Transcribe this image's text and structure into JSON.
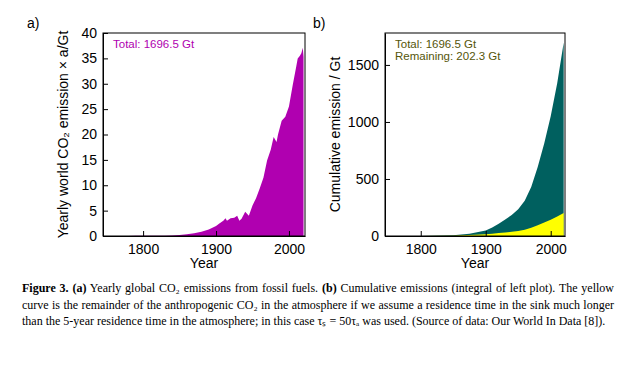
{
  "chart_data": [
    {
      "type": "area",
      "panel_label": "a)",
      "x_label": "Year",
      "y_label": "Yearly world CO₂ emission × a/Gt",
      "annotations": [
        {
          "text": "Total: 1696.5 Gt",
          "color": "#b000b0"
        }
      ],
      "x": [
        1750,
        1760,
        1770,
        1780,
        1790,
        1800,
        1810,
        1820,
        1830,
        1840,
        1850,
        1860,
        1870,
        1880,
        1890,
        1900,
        1905,
        1910,
        1913,
        1915,
        1920,
        1925,
        1929,
        1932,
        1935,
        1940,
        1945,
        1950,
        1955,
        1960,
        1965,
        1970,
        1975,
        1979,
        1983,
        1985,
        1990,
        1995,
        2000,
        2005,
        2010,
        2012,
        2015,
        2017,
        2019,
        2020
      ],
      "series": [
        {
          "color": "#b000b0",
          "values": [
            0.01,
            0.01,
            0.02,
            0.02,
            0.03,
            0.03,
            0.04,
            0.05,
            0.07,
            0.1,
            0.2,
            0.36,
            0.55,
            0.85,
            1.3,
            1.95,
            2.5,
            3.0,
            3.5,
            3.0,
            3.5,
            3.6,
            4.0,
            3.0,
            3.4,
            4.8,
            4.0,
            6.0,
            7.5,
            9.4,
            11.5,
            14.9,
            17.0,
            19.5,
            18.5,
            20.0,
            22.7,
            23.5,
            25.5,
            29.6,
            33.4,
            35.0,
            35.5,
            36.0,
            37.1,
            35.3
          ]
        }
      ],
      "xlim": [
        1745,
        2022
      ],
      "xticks": [
        1800,
        1900,
        2000
      ],
      "ylim": [
        0,
        40
      ],
      "yticks": [
        0,
        5,
        10,
        15,
        20,
        25,
        30,
        35,
        40
      ]
    },
    {
      "type": "area",
      "panel_label": "b)",
      "x_label": "Year",
      "y_label": "Cumulative emission / Gt",
      "annotations": [
        {
          "text": "Total: 1696.5 Gt",
          "color": "#55550a"
        },
        {
          "text": "Remaining: 202.3 Gt",
          "color": "#55550a"
        }
      ],
      "x": [
        1750,
        1800,
        1850,
        1875,
        1900,
        1910,
        1920,
        1930,
        1940,
        1950,
        1960,
        1970,
        1980,
        1990,
        2000,
        2010,
        2020
      ],
      "series": [
        {
          "color": "#00605f",
          "values": [
            0,
            1,
            6,
            20,
            49,
            74,
            107,
            144,
            184,
            234,
            310,
            430,
            605,
            810,
            1050,
            1340,
            1696.5
          ]
        },
        {
          "color": "#ffff00",
          "values": [
            0,
            0.5,
            3,
            8,
            15,
            20,
            26,
            31,
            37,
            43,
            55,
            72,
            95,
            118,
            142,
            170,
            202.3
          ]
        }
      ],
      "xlim": [
        1745,
        2022
      ],
      "xticks": [
        1800,
        1900,
        2000
      ],
      "ylim": [
        0,
        1780
      ],
      "yticks": [
        0,
        500,
        1000,
        1500
      ]
    }
  ],
  "caption": {
    "label": "Figure 3.",
    "panels": [
      {
        "tag": "(a)",
        "text": "Yearly global CO₂ emissions from fossil fuels."
      },
      {
        "tag": "(b)",
        "text": "Cumulative emissions (integral of left plot). The yellow curve is the remainder of the anthropogenic CO₂ in the atmosphere if we assume a residence time in the sink much longer than the 5-year residence time in the atmosphere; in this case τₛ = 50τₐ was used. (Source of data: Our World In Data [8])."
      }
    ]
  }
}
